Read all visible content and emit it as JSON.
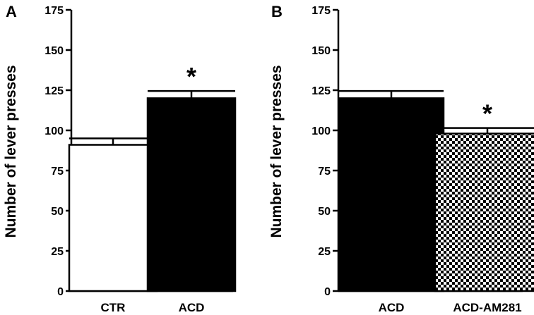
{
  "chart_data": [
    {
      "type": "bar",
      "panel_label": "A",
      "ylabel": "Number of lever presses",
      "ylim": [
        0,
        175
      ],
      "yticks": [
        0,
        25,
        50,
        75,
        100,
        125,
        150,
        175
      ],
      "categories": [
        "CTR",
        "ACD"
      ],
      "values": [
        91,
        120
      ],
      "errors": [
        4,
        4.5
      ],
      "fills": [
        "white",
        "black"
      ],
      "significance": [
        "",
        "*"
      ]
    },
    {
      "type": "bar",
      "panel_label": "B",
      "ylabel": "Number of lever presses",
      "ylim": [
        0,
        175
      ],
      "yticks": [
        0,
        25,
        50,
        75,
        100,
        125,
        150,
        175
      ],
      "categories": [
        "ACD",
        "ACD-AM281"
      ],
      "values": [
        120,
        98
      ],
      "errors": [
        4.5,
        3.5
      ],
      "fills": [
        "black",
        "checkered"
      ],
      "significance": [
        "",
        "*"
      ]
    }
  ]
}
